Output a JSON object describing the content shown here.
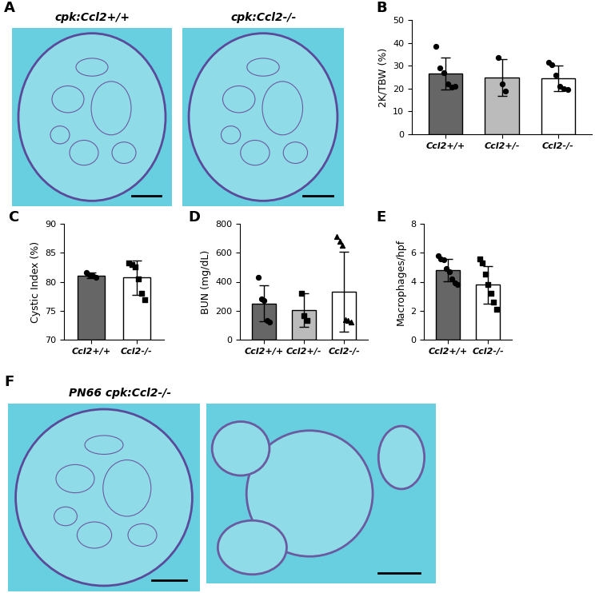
{
  "chart_data": [
    {
      "panel": "B",
      "type": "bar",
      "ylabel": "2K/TBW (%)",
      "categories": [
        "Ccl2+/+",
        "Ccl2+/-",
        "Ccl2-/-"
      ],
      "values": [
        26.5,
        24.8,
        24.5
      ],
      "error": [
        7.0,
        8.0,
        5.5
      ],
      "points": [
        [
          38.5,
          29,
          27,
          22,
          20.5,
          21
        ],
        [
          33.5,
          22,
          19
        ],
        [
          31.5,
          30.5,
          26,
          21,
          20,
          19.5
        ]
      ],
      "markers": [
        "o",
        "o",
        "o"
      ],
      "colors": [
        "#666666",
        "#bbbbbb",
        "#ffffff"
      ],
      "ylim": [
        0,
        50
      ],
      "yticks": [
        0,
        10,
        20,
        30,
        40,
        50
      ]
    },
    {
      "panel": "C",
      "type": "bar",
      "ylabel": "Cystic Index (%)",
      "categories": [
        "Ccl2+/+",
        "Ccl2-/-"
      ],
      "values": [
        81.1,
        80.7
      ],
      "error": [
        0.5,
        3.0
      ],
      "points": [
        [
          81.6,
          81.2,
          81.0,
          80.8
        ],
        [
          83.3,
          83.0,
          82.5,
          80.5,
          78.0,
          76.9
        ]
      ],
      "markers": [
        "o",
        "s"
      ],
      "colors": [
        "#666666",
        "#ffffff"
      ],
      "ylim": [
        70,
        90
      ],
      "yticks": [
        70,
        75,
        80,
        85,
        90
      ]
    },
    {
      "panel": "D",
      "type": "bar",
      "ylabel": "BUN (mg/dL)",
      "categories": [
        "Ccl2+/+",
        "Ccl2+/-",
        "Ccl2-/-"
      ],
      "values": [
        250,
        205,
        330
      ],
      "error": [
        125,
        115,
        275
      ],
      "points": [
        [
          430,
          280,
          270,
          130,
          120
        ],
        [
          320,
          165,
          130
        ],
        [
          710,
          680,
          650,
          140,
          130,
          120
        ]
      ],
      "markers": [
        "o",
        "s",
        "^"
      ],
      "colors": [
        "#666666",
        "#bbbbbb",
        "#ffffff"
      ],
      "ylim": [
        0,
        800
      ],
      "yticks": [
        0,
        200,
        400,
        600,
        800
      ]
    },
    {
      "panel": "E",
      "type": "bar",
      "ylabel": "Macrophages/hpf",
      "categories": [
        "Ccl2+/+",
        "Ccl2-/-"
      ],
      "values": [
        4.8,
        3.8
      ],
      "error": [
        0.75,
        1.3
      ],
      "points": [
        [
          5.8,
          5.6,
          5.5,
          4.9,
          4.7,
          4.2,
          3.9,
          3.8
        ],
        [
          5.6,
          5.3,
          4.5,
          3.8,
          3.2,
          2.6,
          2.1
        ]
      ],
      "markers": [
        "o",
        "s"
      ],
      "colors": [
        "#666666",
        "#ffffff"
      ],
      "ylim": [
        0,
        8
      ],
      "yticks": [
        0,
        2,
        4,
        6,
        8
      ]
    }
  ],
  "images": [
    {
      "panel": "A",
      "titles": [
        "cpk:Ccl2+/+",
        "cpk:Ccl2-/-"
      ]
    },
    {
      "panel": "F",
      "titles": [
        "PN66 cpk:Ccl2-/-"
      ]
    }
  ]
}
